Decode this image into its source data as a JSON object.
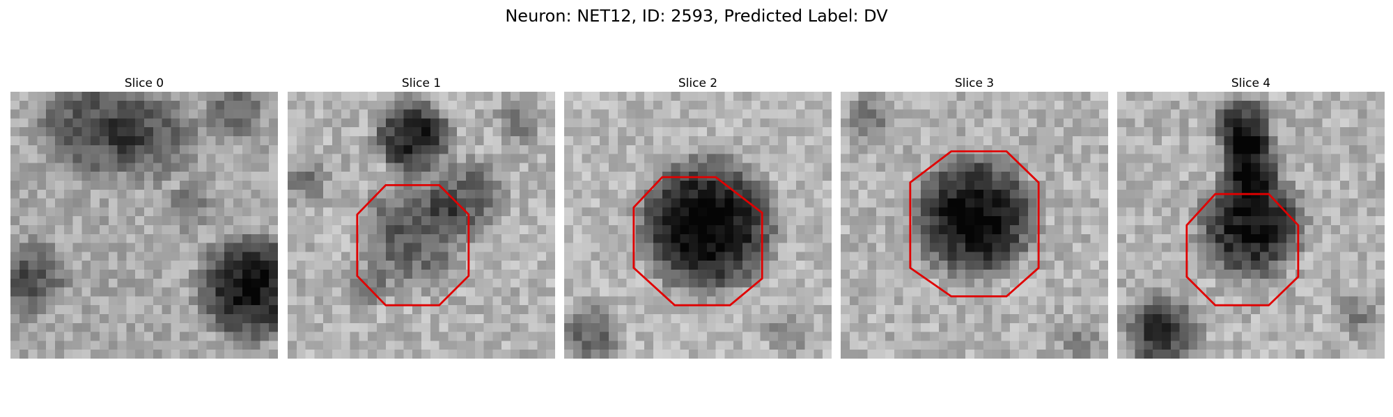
{
  "figure": {
    "title": "Neuron: NET12, ID: 2593, Predicted Label: DV"
  },
  "slices": [
    {
      "title": "Slice 0",
      "has_roi": false
    },
    {
      "title": "Slice 1",
      "has_roi": true
    },
    {
      "title": "Slice 2",
      "has_roi": true
    },
    {
      "title": "Slice 3",
      "has_roi": true
    },
    {
      "title": "Slice 4",
      "has_roi": true
    }
  ],
  "colors": {
    "roi": "#e00000",
    "background": "#ffffff"
  },
  "colormap": "grayscale"
}
